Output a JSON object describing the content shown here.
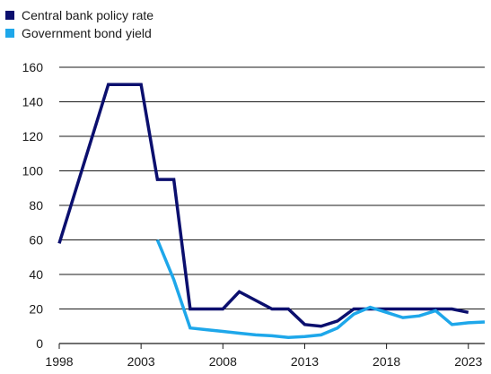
{
  "chart_data": {
    "type": "line",
    "title": "",
    "xlabel": "",
    "ylabel": "",
    "xlim": [
      1998,
      2024
    ],
    "ylim": [
      0,
      160
    ],
    "x_ticks": [
      1998,
      2003,
      2008,
      2013,
      2018,
      2023
    ],
    "y_ticks": [
      0,
      20,
      40,
      60,
      80,
      100,
      120,
      140,
      160
    ],
    "grid": "horizontal",
    "legend_position": "top-left",
    "series": [
      {
        "name": "Central bank policy rate",
        "color": "#0b0f6e",
        "x": [
          1998,
          2001,
          2002,
          2003,
          2004,
          2005,
          2006,
          2006.1,
          2008,
          2009,
          2010,
          2011,
          2012,
          2013,
          2014,
          2015,
          2016,
          2017,
          2018,
          2019,
          2020,
          2021,
          2022,
          2023
        ],
        "values": [
          58,
          150,
          150,
          150,
          95,
          95,
          20,
          20,
          20,
          30,
          25,
          20,
          20,
          11,
          10,
          13,
          20,
          20,
          20,
          20,
          20,
          20,
          20,
          18
        ]
      },
      {
        "name": "Government bond yield",
        "color": "#1ea7ea",
        "x": [
          2004,
          2005,
          2006,
          2007,
          2008,
          2009,
          2010,
          2011,
          2012,
          2013,
          2014,
          2015,
          2016,
          2017,
          2018,
          2019,
          2020,
          2021,
          2022,
          2023,
          2024
        ],
        "values": [
          60,
          37,
          9,
          8,
          7,
          6,
          5,
          4.5,
          3.5,
          4,
          5,
          9,
          17,
          21,
          18,
          15,
          16,
          19,
          11,
          12,
          12.5
        ]
      }
    ]
  }
}
